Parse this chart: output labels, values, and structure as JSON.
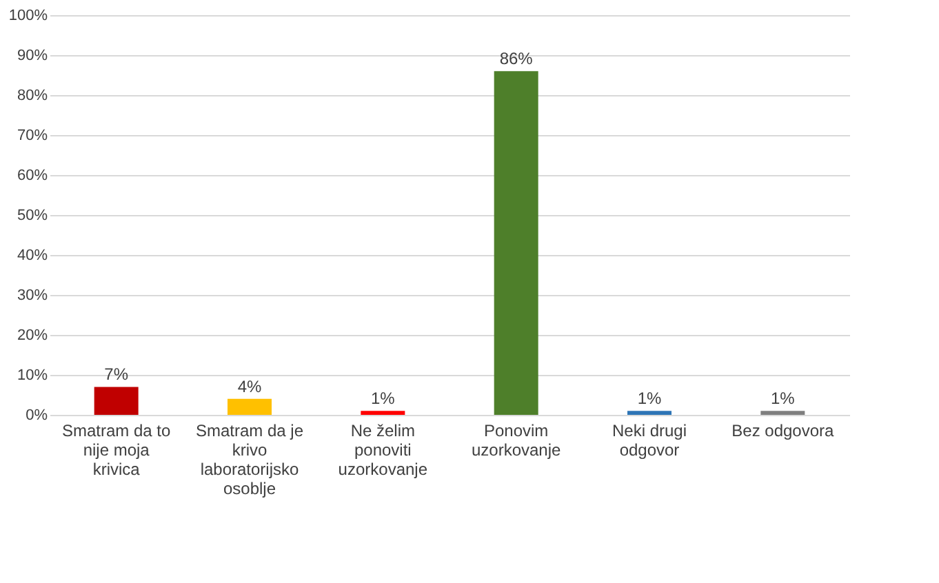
{
  "chart_data": {
    "type": "bar",
    "categories": [
      "Smatram da to nije moja krivica",
      "Smatram da je krivo laboratorijsko osoblje",
      "Ne želim ponoviti uzorkovanje",
      "Ponovim uzorkovanje",
      "Neki drugi odgovor",
      "Bez odgovora"
    ],
    "values": [
      7,
      4,
      1,
      86,
      1,
      1
    ],
    "value_labels": [
      "7%",
      "4%",
      "1%",
      "86%",
      "1%",
      "1%"
    ],
    "colors": [
      "#c00000",
      "#ffc000",
      "#ff0000",
      "#4e7f2a",
      "#2e75b6",
      "#7f7f7f"
    ],
    "ylim": [
      0,
      100
    ],
    "yticks": [
      {
        "value": 0,
        "label": "0%"
      },
      {
        "value": 10,
        "label": "10%"
      },
      {
        "value": 20,
        "label": "20%"
      },
      {
        "value": 30,
        "label": "30%"
      },
      {
        "value": 40,
        "label": "40%"
      },
      {
        "value": 50,
        "label": "50%"
      },
      {
        "value": 60,
        "label": "60%"
      },
      {
        "value": 70,
        "label": "70%"
      },
      {
        "value": 80,
        "label": "80%"
      },
      {
        "value": 90,
        "label": "90%"
      },
      {
        "value": 100,
        "label": "100%"
      }
    ],
    "grid": "y"
  }
}
